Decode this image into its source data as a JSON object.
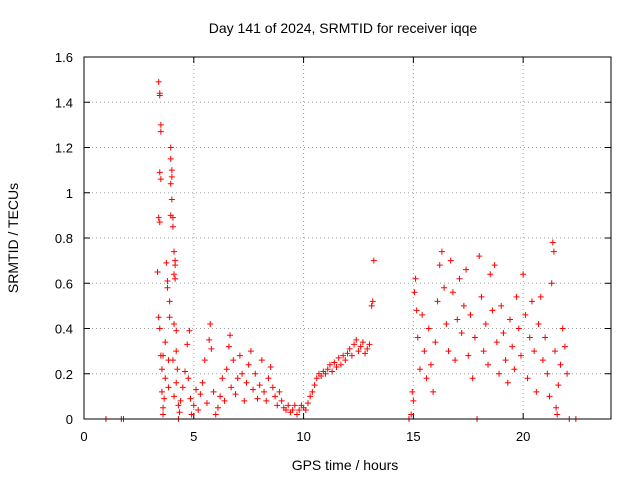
{
  "chart_data": {
    "type": "scatter",
    "title": "Day 141 of 2024, SRMTID for receiver iqqe",
    "xlabel": "GPS time / hours",
    "ylabel": "SRMTID / TECUs",
    "xlim": [
      0,
      24
    ],
    "ylim": [
      0,
      1.6
    ],
    "xticks": [
      0,
      5,
      10,
      15,
      20
    ],
    "xtick_labels": [
      "0",
      "5",
      "10",
      "15",
      "20"
    ],
    "yticks": [
      0,
      0.2,
      0.4,
      0.6,
      0.8,
      1,
      1.2,
      1.4,
      1.6
    ],
    "ytick_labels": [
      "0",
      "0.2",
      "0.4",
      "0.6",
      "0.8",
      "1",
      "1.2",
      "1.4",
      "1.6"
    ],
    "grid": true,
    "marker": "+",
    "series": [
      {
        "name": "SRMTID",
        "color": "#ff0000",
        "points": [
          [
            1.0,
            0.0
          ],
          [
            1.7,
            0.0
          ],
          [
            1.8,
            0.0
          ],
          [
            3.4,
            1.49
          ],
          [
            3.45,
            1.44
          ],
          [
            3.45,
            1.43
          ],
          [
            3.5,
            1.3
          ],
          [
            3.5,
            1.27
          ],
          [
            3.45,
            1.09
          ],
          [
            3.5,
            1.06
          ],
          [
            3.4,
            0.89
          ],
          [
            3.45,
            0.87
          ],
          [
            3.35,
            0.65
          ],
          [
            3.4,
            0.45
          ],
          [
            3.45,
            0.4
          ],
          [
            3.5,
            0.28
          ],
          [
            3.55,
            0.22
          ],
          [
            3.55,
            0.12
          ],
          [
            3.6,
            0.05
          ],
          [
            3.6,
            0.02
          ],
          [
            3.6,
            0.28
          ],
          [
            3.7,
            0.34
          ],
          [
            3.7,
            0.18
          ],
          [
            3.65,
            0.09
          ],
          [
            3.8,
            0.58
          ],
          [
            3.75,
            0.69
          ],
          [
            3.8,
            0.61
          ],
          [
            3.9,
            0.52
          ],
          [
            3.9,
            0.45
          ],
          [
            3.85,
            0.26
          ],
          [
            3.85,
            0.14
          ],
          [
            3.95,
            1.2
          ],
          [
            3.95,
            1.15
          ],
          [
            4.0,
            1.1
          ],
          [
            4.0,
            1.07
          ],
          [
            3.95,
            1.04
          ],
          [
            4.0,
            0.97
          ],
          [
            3.95,
            0.9
          ],
          [
            4.05,
            0.89
          ],
          [
            4.05,
            0.85
          ],
          [
            4.1,
            0.74
          ],
          [
            4.15,
            0.7
          ],
          [
            4.15,
            0.68
          ],
          [
            4.1,
            0.64
          ],
          [
            4.15,
            0.62
          ],
          [
            4.1,
            0.42
          ],
          [
            4.2,
            0.39
          ],
          [
            4.2,
            0.3
          ],
          [
            4.05,
            0.26
          ],
          [
            4.25,
            0.22
          ],
          [
            4.2,
            0.16
          ],
          [
            4.1,
            0.1
          ],
          [
            4.3,
            0.06
          ],
          [
            4.35,
            0.03
          ],
          [
            4.3,
            0.0
          ],
          [
            4.4,
            0.08
          ],
          [
            4.5,
            0.14
          ],
          [
            4.6,
            0.21
          ],
          [
            4.7,
            0.33
          ],
          [
            4.8,
            0.39
          ],
          [
            4.75,
            0.18
          ],
          [
            4.85,
            0.09
          ],
          [
            4.9,
            0.02
          ],
          [
            5.0,
            0.06
          ],
          [
            5.1,
            0.13
          ],
          [
            5.2,
            0.04
          ],
          [
            5.3,
            0.11
          ],
          [
            5.4,
            0.16
          ],
          [
            5.5,
            0.26
          ],
          [
            5.6,
            0.07
          ],
          [
            5.7,
            0.35
          ],
          [
            5.75,
            0.42
          ],
          [
            5.8,
            0.31
          ],
          [
            5.9,
            0.12
          ],
          [
            6.0,
            0.02
          ],
          [
            6.1,
            0.05
          ],
          [
            6.2,
            0.1
          ],
          [
            6.3,
            0.18
          ],
          [
            6.4,
            0.08
          ],
          [
            6.5,
            0.22
          ],
          [
            6.6,
            0.32
          ],
          [
            6.65,
            0.37
          ],
          [
            6.7,
            0.14
          ],
          [
            6.8,
            0.26
          ],
          [
            6.9,
            0.11
          ],
          [
            7.0,
            0.18
          ],
          [
            7.1,
            0.28
          ],
          [
            7.2,
            0.2
          ],
          [
            7.3,
            0.08
          ],
          [
            7.4,
            0.16
          ],
          [
            7.5,
            0.24
          ],
          [
            7.6,
            0.3
          ],
          [
            7.7,
            0.13
          ],
          [
            7.8,
            0.2
          ],
          [
            7.9,
            0.09
          ],
          [
            8.0,
            0.15
          ],
          [
            8.1,
            0.26
          ],
          [
            8.2,
            0.12
          ],
          [
            8.3,
            0.08
          ],
          [
            8.4,
            0.18
          ],
          [
            8.5,
            0.23
          ],
          [
            8.6,
            0.14
          ],
          [
            8.7,
            0.1
          ],
          [
            8.8,
            0.06
          ],
          [
            8.9,
            0.12
          ],
          [
            9.0,
            0.08
          ],
          [
            9.1,
            0.05
          ],
          [
            9.2,
            0.04
          ],
          [
            9.3,
            0.06
          ],
          [
            9.4,
            0.03
          ],
          [
            9.5,
            0.04
          ],
          [
            9.6,
            0.06
          ],
          [
            9.7,
            0.02
          ],
          [
            9.8,
            0.04
          ],
          [
            9.9,
            0.06
          ],
          [
            10.0,
            0.05
          ],
          [
            10.1,
            0.04
          ],
          [
            10.2,
            0.07
          ],
          [
            10.3,
            0.1
          ],
          [
            10.4,
            0.12
          ],
          [
            10.5,
            0.15
          ],
          [
            10.6,
            0.18
          ],
          [
            10.7,
            0.2
          ],
          [
            10.8,
            0.19
          ],
          [
            10.9,
            0.21
          ],
          [
            11.0,
            0.2
          ],
          [
            11.1,
            0.22
          ],
          [
            11.2,
            0.24
          ],
          [
            11.3,
            0.21
          ],
          [
            11.4,
            0.25
          ],
          [
            11.5,
            0.23
          ],
          [
            11.6,
            0.27
          ],
          [
            11.7,
            0.24
          ],
          [
            11.8,
            0.28
          ],
          [
            11.9,
            0.26
          ],
          [
            12.0,
            0.29
          ],
          [
            12.1,
            0.31
          ],
          [
            12.2,
            0.28
          ],
          [
            12.3,
            0.33
          ],
          [
            12.4,
            0.35
          ],
          [
            12.5,
            0.3
          ],
          [
            12.6,
            0.32
          ],
          [
            12.7,
            0.34
          ],
          [
            12.8,
            0.29
          ],
          [
            12.9,
            0.31
          ],
          [
            13.0,
            0.33
          ],
          [
            13.1,
            0.5
          ],
          [
            13.15,
            0.52
          ],
          [
            13.2,
            0.7
          ],
          [
            14.8,
            0.0
          ],
          [
            14.9,
            0.02
          ],
          [
            14.95,
            0.12
          ],
          [
            15.0,
            0.08
          ],
          [
            15.05,
            0.56
          ],
          [
            15.1,
            0.62
          ],
          [
            15.15,
            0.48
          ],
          [
            15.2,
            0.36
          ],
          [
            15.3,
            0.22
          ],
          [
            15.4,
            0.46
          ],
          [
            15.5,
            0.3
          ],
          [
            15.6,
            0.18
          ],
          [
            15.7,
            0.4
          ],
          [
            15.8,
            0.24
          ],
          [
            15.9,
            0.12
          ],
          [
            16.0,
            0.34
          ],
          [
            16.1,
            0.52
          ],
          [
            16.2,
            0.68
          ],
          [
            16.3,
            0.74
          ],
          [
            16.4,
            0.58
          ],
          [
            16.5,
            0.42
          ],
          [
            16.6,
            0.3
          ],
          [
            16.7,
            0.7
          ],
          [
            16.8,
            0.56
          ],
          [
            16.9,
            0.26
          ],
          [
            17.0,
            0.44
          ],
          [
            17.1,
            0.62
          ],
          [
            17.2,
            0.38
          ],
          [
            17.3,
            0.5
          ],
          [
            17.4,
            0.66
          ],
          [
            17.5,
            0.28
          ],
          [
            17.6,
            0.46
          ],
          [
            17.7,
            0.18
          ],
          [
            17.8,
            0.36
          ],
          [
            17.9,
            0.0
          ],
          [
            18.0,
            0.72
          ],
          [
            18.1,
            0.54
          ],
          [
            18.2,
            0.3
          ],
          [
            18.3,
            0.42
          ],
          [
            18.4,
            0.24
          ],
          [
            18.5,
            0.64
          ],
          [
            18.6,
            0.48
          ],
          [
            18.7,
            0.68
          ],
          [
            18.8,
            0.34
          ],
          [
            18.9,
            0.2
          ],
          [
            19.0,
            0.5
          ],
          [
            19.1,
            0.38
          ],
          [
            19.2,
            0.26
          ],
          [
            19.3,
            0.16
          ],
          [
            19.4,
            0.44
          ],
          [
            19.5,
            0.32
          ],
          [
            19.6,
            0.22
          ],
          [
            19.7,
            0.54
          ],
          [
            19.8,
            0.4
          ],
          [
            19.9,
            0.28
          ],
          [
            20.0,
            0.64
          ],
          [
            20.1,
            0.46
          ],
          [
            20.2,
            0.18
          ],
          [
            20.3,
            0.36
          ],
          [
            20.4,
            0.52
          ],
          [
            20.5,
            0.3
          ],
          [
            20.6,
            0.12
          ],
          [
            20.7,
            0.42
          ],
          [
            20.8,
            0.54
          ],
          [
            20.9,
            0.26
          ],
          [
            21.0,
            0.36
          ],
          [
            21.1,
            0.2
          ],
          [
            21.2,
            0.1
          ],
          [
            21.3,
            0.6
          ],
          [
            21.35,
            0.78
          ],
          [
            21.4,
            0.74
          ],
          [
            21.45,
            0.3
          ],
          [
            21.5,
            0.05
          ],
          [
            21.55,
            0.02
          ],
          [
            21.6,
            0.15
          ],
          [
            21.7,
            0.24
          ],
          [
            21.8,
            0.4
          ],
          [
            21.9,
            0.32
          ],
          [
            22.0,
            0.2
          ],
          [
            22.1,
            0.0
          ],
          [
            22.4,
            0.0
          ]
        ]
      }
    ]
  }
}
